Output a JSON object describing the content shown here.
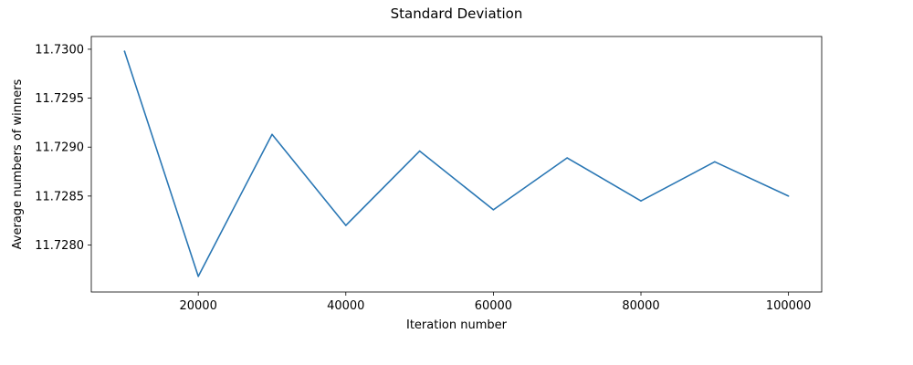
{
  "chart_data": {
    "type": "line",
    "title": "Standard Deviation",
    "xlabel": "Iteration number",
    "ylabel": "Average numbers of winners",
    "xlim": [
      5500,
      104500
    ],
    "ylim": [
      11.72752,
      11.73013
    ],
    "xticks": [
      20000,
      40000,
      60000,
      80000,
      100000
    ],
    "xtick_labels": [
      "20000",
      "40000",
      "60000",
      "80000",
      "100000"
    ],
    "yticks": [
      11.728,
      11.7285,
      11.729,
      11.7295,
      11.73
    ],
    "ytick_labels": [
      "11.7280",
      "11.7285",
      "11.7290",
      "11.7295",
      "11.7300"
    ],
    "grid": false,
    "series": [
      {
        "color": "#2a77b4",
        "x": [
          10000,
          20000,
          30000,
          40000,
          50000,
          60000,
          70000,
          80000,
          90000,
          100000
        ],
        "y": [
          11.72998,
          11.72768,
          11.72913,
          11.7282,
          11.72896,
          11.72836,
          11.72889,
          11.72845,
          11.72885,
          11.7285
        ]
      }
    ]
  }
}
